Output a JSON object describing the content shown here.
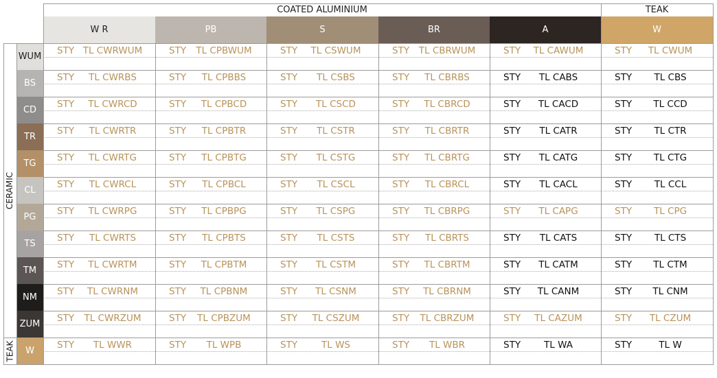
{
  "groups": [
    {
      "label": "COATED ALUMINIUM",
      "span": 5
    },
    {
      "label": "TEAK",
      "span": 1
    }
  ],
  "finishes": [
    {
      "code": "W R",
      "bg": "#e6e5e2",
      "fg": "#222"
    },
    {
      "code": "PB",
      "bg": "#bdb6ae",
      "fg": "#ffffff"
    },
    {
      "code": "S",
      "bg": "#a18e77",
      "fg": "#ffffff"
    },
    {
      "code": "BR",
      "bg": "#6a5d56",
      "fg": "#ffffff"
    },
    {
      "code": "A",
      "bg": "#2d2521",
      "fg": "#ffffff"
    },
    {
      "code": "W",
      "bg": "#d0a568",
      "fg": "#ffffff"
    }
  ],
  "row_groups": [
    {
      "label": "CERAMIC",
      "rows": 11
    },
    {
      "label": "TEAK",
      "rows": 1
    }
  ],
  "colors": {
    "gold": "#b8935a",
    "black": "#111111"
  },
  "rows": [
    {
      "code": "WUM",
      "bg": "#e0dfdc",
      "fg": "#222",
      "cells": [
        [
          "STY",
          "TL CWRWUM",
          "g"
        ],
        [
          "STY",
          "TL CPBWUM",
          "g"
        ],
        [
          "STY",
          "TL CSWUM",
          "g"
        ],
        [
          "STY",
          "TL CBRWUM",
          "g"
        ],
        [
          "STY",
          "TL CAWUM",
          "g"
        ],
        [
          "STY",
          "TL CWUM",
          "g"
        ]
      ]
    },
    {
      "code": "BS",
      "bg": "#b5b4b3",
      "fg": "#fff",
      "cells": [
        [
          "STY",
          "TL CWRBS",
          "g"
        ],
        [
          "STY",
          "TL CPBBS",
          "g"
        ],
        [
          "STY",
          "TL CSBS",
          "g"
        ],
        [
          "STY",
          "TL CBRBS",
          "g"
        ],
        [
          "STY",
          "TL CABS",
          "b"
        ],
        [
          "STY",
          "TL CBS",
          "b"
        ]
      ]
    },
    {
      "code": "CD",
      "bg": "#8f8d8b",
      "fg": "#fff",
      "cells": [
        [
          "STY",
          "TL CWRCD",
          "g"
        ],
        [
          "STY",
          "TL CPBCD",
          "g"
        ],
        [
          "STY",
          "TL CSCD",
          "g"
        ],
        [
          "STY",
          "TL CBRCD",
          "g"
        ],
        [
          "STY",
          "TL CACD",
          "b"
        ],
        [
          "STY",
          "TL CCD",
          "b"
        ]
      ]
    },
    {
      "code": "TR",
      "bg": "#8a6e55",
      "fg": "#fff",
      "cells": [
        [
          "STY",
          "TL CWRTR",
          "g"
        ],
        [
          "STY",
          "TL CPBTR",
          "g"
        ],
        [
          "STY",
          "TL CSTR",
          "g"
        ],
        [
          "STY",
          "TL CBRTR",
          "g"
        ],
        [
          "STY",
          "TL CATR",
          "b"
        ],
        [
          "STY",
          "TL CTR",
          "b"
        ]
      ]
    },
    {
      "code": "TG",
      "bg": "#b39068",
      "fg": "#fff",
      "cells": [
        [
          "STY",
          "TL CWRTG",
          "g"
        ],
        [
          "STY",
          "TL CPBTG",
          "g"
        ],
        [
          "STY",
          "TL CSTG",
          "g"
        ],
        [
          "STY",
          "TL CBRTG",
          "g"
        ],
        [
          "STY",
          "TL CATG",
          "b"
        ],
        [
          "STY",
          "TL CTG",
          "b"
        ]
      ]
    },
    {
      "code": "CL",
      "bg": "#c6c4c0",
      "fg": "#fff",
      "cells": [
        [
          "STY",
          "TL CWRCL",
          "g"
        ],
        [
          "STY",
          "TL CPBCL",
          "g"
        ],
        [
          "STY",
          "TL CSCL",
          "g"
        ],
        [
          "STY",
          "TL CBRCL",
          "g"
        ],
        [
          "STY",
          "TL CACL",
          "b"
        ],
        [
          "STY",
          "TL CCL",
          "b"
        ]
      ]
    },
    {
      "code": "PG",
      "bg": "#b3a898",
      "fg": "#fff",
      "cells": [
        [
          "STY",
          "TL CWRPG",
          "g"
        ],
        [
          "STY",
          "TL CPBPG",
          "g"
        ],
        [
          "STY",
          "TL CSPG",
          "g"
        ],
        [
          "STY",
          "TL CBRPG",
          "g"
        ],
        [
          "STY",
          "TL CAPG",
          "g"
        ],
        [
          "STY",
          "TL CPG",
          "g"
        ]
      ]
    },
    {
      "code": "TS",
      "bg": "#a7a3a2",
      "fg": "#fff",
      "cells": [
        [
          "STY",
          "TL CWRTS",
          "g"
        ],
        [
          "STY",
          "TL CPBTS",
          "g"
        ],
        [
          "STY",
          "TL CSTS",
          "g"
        ],
        [
          "STY",
          "TL CBRTS",
          "g"
        ],
        [
          "STY",
          "TL CATS",
          "b"
        ],
        [
          "STY",
          "TL CTS",
          "b"
        ]
      ]
    },
    {
      "code": "TM",
      "bg": "#5b5653",
      "fg": "#fff",
      "cells": [
        [
          "STY",
          "TL CWRTM",
          "g"
        ],
        [
          "STY",
          "TL CPBTM",
          "g"
        ],
        [
          "STY",
          "TL CSTM",
          "g"
        ],
        [
          "STY",
          "TL CBRTM",
          "g"
        ],
        [
          "STY",
          "TL CATM",
          "b"
        ],
        [
          "STY",
          "TL CTM",
          "b"
        ]
      ]
    },
    {
      "code": "NM",
      "bg": "#1f1d1c",
      "fg": "#fff",
      "cells": [
        [
          "STY",
          "TL CWRNM",
          "g"
        ],
        [
          "STY",
          "TL CPBNM",
          "g"
        ],
        [
          "STY",
          "TL CSNM",
          "g"
        ],
        [
          "STY",
          "TL CBRNM",
          "g"
        ],
        [
          "STY",
          "TL CANM",
          "b"
        ],
        [
          "STY",
          "TL CNM",
          "b"
        ]
      ]
    },
    {
      "code": "ZUM",
      "bg": "#3a3735",
      "fg": "#fff",
      "cells": [
        [
          "STY",
          "TL CWRZUM",
          "g"
        ],
        [
          "STY",
          "TL CPBZUM",
          "g"
        ],
        [
          "STY",
          "TL CSZUM",
          "g"
        ],
        [
          "STY",
          "TL CBRZUM",
          "g"
        ],
        [
          "STY",
          "TL CAZUM",
          "g"
        ],
        [
          "STY",
          "TL CZUM",
          "g"
        ]
      ]
    },
    {
      "code": "W",
      "bg": "#c9a36b",
      "fg": "#fff",
      "cells": [
        [
          "STY",
          "TL WWR",
          "g"
        ],
        [
          "STY",
          "TL WPB",
          "g"
        ],
        [
          "STY",
          "TL WS",
          "g"
        ],
        [
          "STY",
          "TL WBR",
          "g"
        ],
        [
          "STY",
          "TL WA",
          "b"
        ],
        [
          "STY",
          "TL W",
          "b"
        ]
      ]
    }
  ]
}
